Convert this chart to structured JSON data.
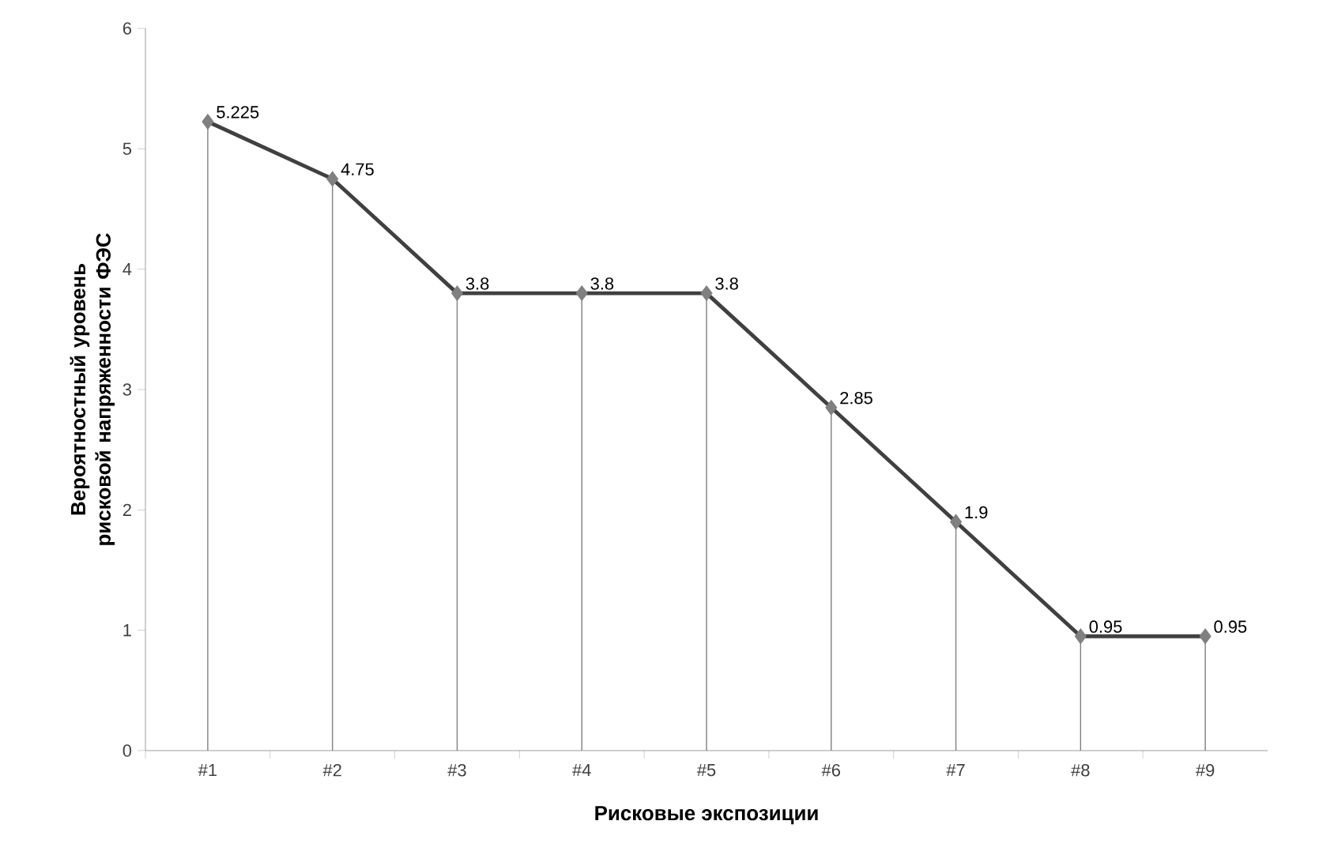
{
  "chart_data": {
    "type": "line",
    "xlabel": "Рисковые экспозиции",
    "ylabel": "Вероятностный уровень рисковой напряженности  ФЭС",
    "categories": [
      "#1",
      "#2",
      "#3",
      "#4",
      "#5",
      "#6",
      "#7",
      "#8",
      "#9"
    ],
    "series": [
      {
        "color": "#404040",
        "marker": "none",
        "line_style": "solid",
        "values": [
          5.225,
          4.75,
          3.8,
          3.8,
          3.8,
          2.85,
          1.9,
          0.95,
          0.95
        ]
      },
      {
        "type": "lollipop",
        "color": "#808080",
        "marker": "diamond",
        "values": [
          5.225,
          4.75,
          3.8,
          3.8,
          3.8,
          2.85,
          1.9,
          0.95,
          0.95
        ],
        "value_labels": [
          "5.225",
          "4.75",
          "3.8",
          "3.8",
          "3.8",
          "2.85",
          "1.9",
          "0.95",
          "0.95"
        ]
      }
    ],
    "ylim": [
      0,
      6
    ],
    "yticks": [
      0,
      1,
      2,
      3,
      4,
      5,
      6
    ]
  }
}
